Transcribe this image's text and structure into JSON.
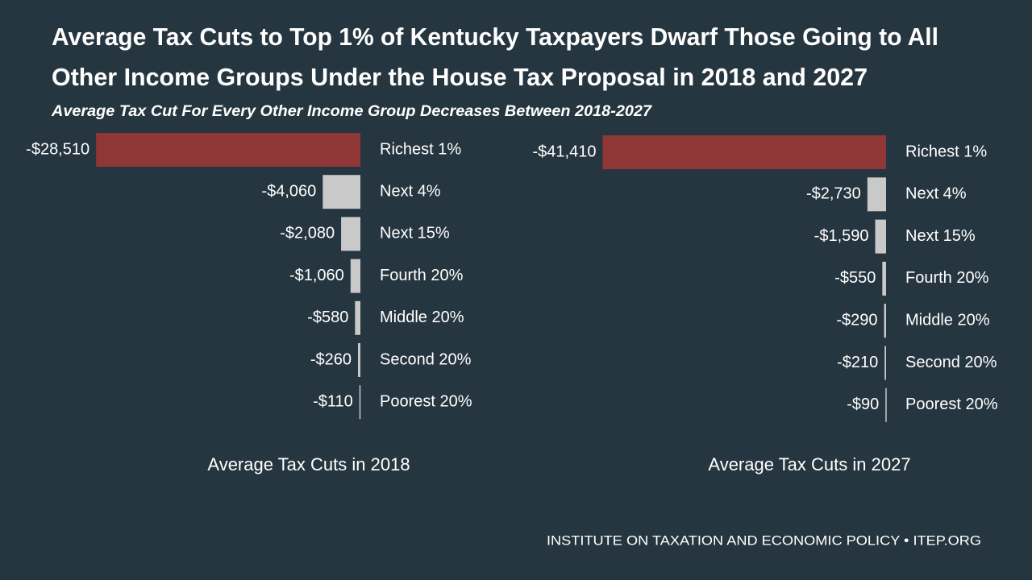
{
  "title": [
    "Average Tax Cuts to Top 1% of Kentucky Taxpayers Dwarf Those Going to All",
    "Other Income Groups Under the House Tax Proposal in 2018 and 2027"
  ],
  "subtitle": "Average Tax Cut For Every Other Income Group Decreases  Between 2018-2027",
  "source": "INSTITUTE ON TAXATION AND ECONOMIC POLICY • ITEP.ORG",
  "chart_data": [
    {
      "type": "bar",
      "orientation": "horizontal",
      "xlabel": "Average Tax Cuts in 2018",
      "categories": [
        "Richest 1%",
        "Next 4%",
        "Next 15%",
        "Fourth 20%",
        "Middle 20%",
        "Second 20%",
        "Poorest 20%"
      ],
      "values": [
        -28510,
        -4060,
        -2080,
        -1060,
        -580,
        -260,
        -110
      ],
      "value_labels": [
        "-$28,510",
        "-$4,060",
        "-$2,080",
        "-$1,060",
        "-$580",
        "-$260",
        "-$110"
      ],
      "colors": [
        "#8f3636",
        "#c9c9c9",
        "#c9c9c9",
        "#c9c9c9",
        "#c9c9c9",
        "#c9c9c9",
        "#c9c9c9"
      ],
      "xlim": [
        -30000,
        0
      ]
    },
    {
      "type": "bar",
      "orientation": "horizontal",
      "xlabel": "Average Tax Cuts in 2027",
      "categories": [
        "Richest 1%",
        "Next 4%",
        "Next 15%",
        "Fourth 20%",
        "Middle 20%",
        "Second 20%",
        "Poorest 20%"
      ],
      "values": [
        -41410,
        -2730,
        -1590,
        -550,
        -290,
        -210,
        -90
      ],
      "value_labels": [
        "-$41,410",
        "-$2,730",
        "-$1,590",
        "-$550",
        "-$290",
        "-$210",
        "-$90"
      ],
      "colors": [
        "#8f3636",
        "#c9c9c9",
        "#c9c9c9",
        "#c9c9c9",
        "#c9c9c9",
        "#c9c9c9",
        "#c9c9c9"
      ],
      "xlim": [
        -45000,
        0
      ]
    }
  ]
}
